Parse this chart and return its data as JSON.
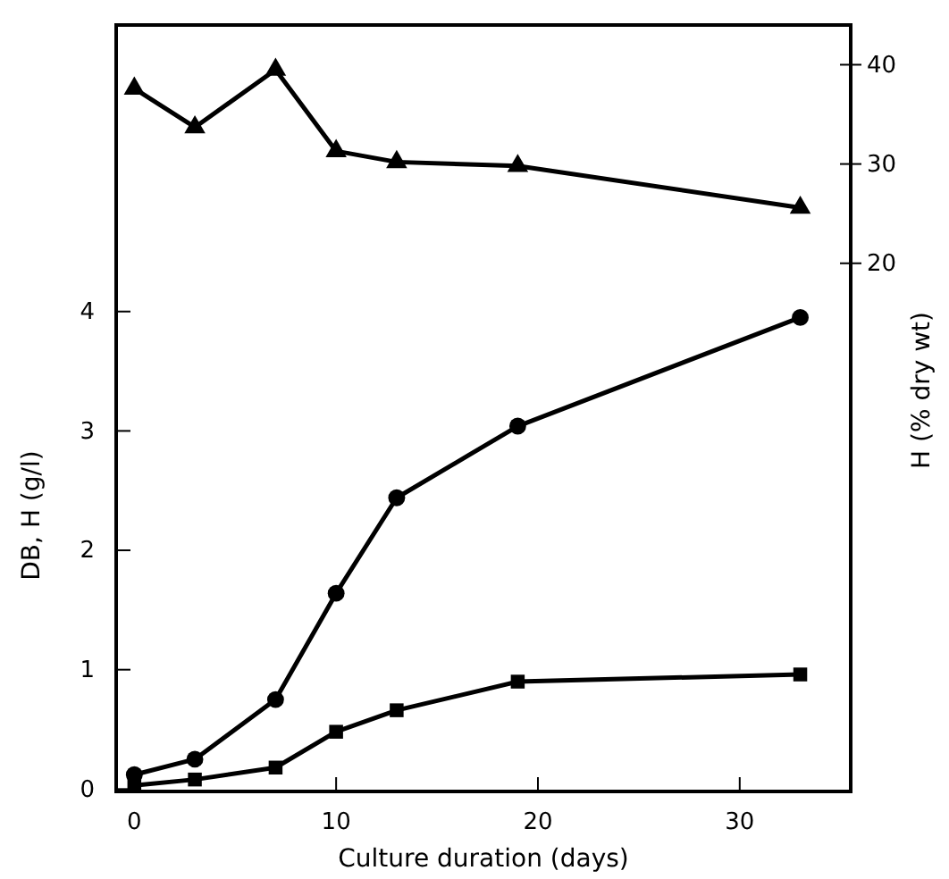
{
  "chart_data": {
    "type": "line",
    "xlabel": "Culture  duration (days)",
    "ylabel": "DB, H (g/l)",
    "y2label": "H (% dry wt)",
    "xlim": [
      -0.9,
      35.5
    ],
    "xticks": [
      0,
      10,
      20,
      30
    ],
    "ylim": [
      -0.02,
      6.4
    ],
    "yticks": [
      0,
      1,
      2,
      3,
      4
    ],
    "y2lim": [
      -33.2,
      44
    ],
    "y2ticks": [
      20,
      30,
      40
    ],
    "grid": false,
    "line_style": "solid",
    "series": [
      {
        "color": "#000000",
        "marker": "triangle",
        "axis": "y2",
        "x": [
          0,
          3,
          7,
          10,
          13,
          19,
          33
        ],
        "values": [
          37.6,
          33.7,
          39.5,
          31.3,
          30.2,
          29.8,
          25.6
        ]
      },
      {
        "color": "#000000",
        "marker": "circle",
        "x": [
          0,
          3,
          7,
          10,
          13,
          19,
          33
        ],
        "values": [
          0.12,
          0.25,
          0.75,
          1.64,
          2.44,
          3.04,
          3.95
        ]
      },
      {
        "color": "#000000",
        "marker": "square",
        "x": [
          0,
          3,
          7,
          10,
          13,
          19,
          33
        ],
        "values": [
          0.03,
          0.08,
          0.18,
          0.48,
          0.66,
          0.9,
          0.96
        ]
      }
    ]
  }
}
